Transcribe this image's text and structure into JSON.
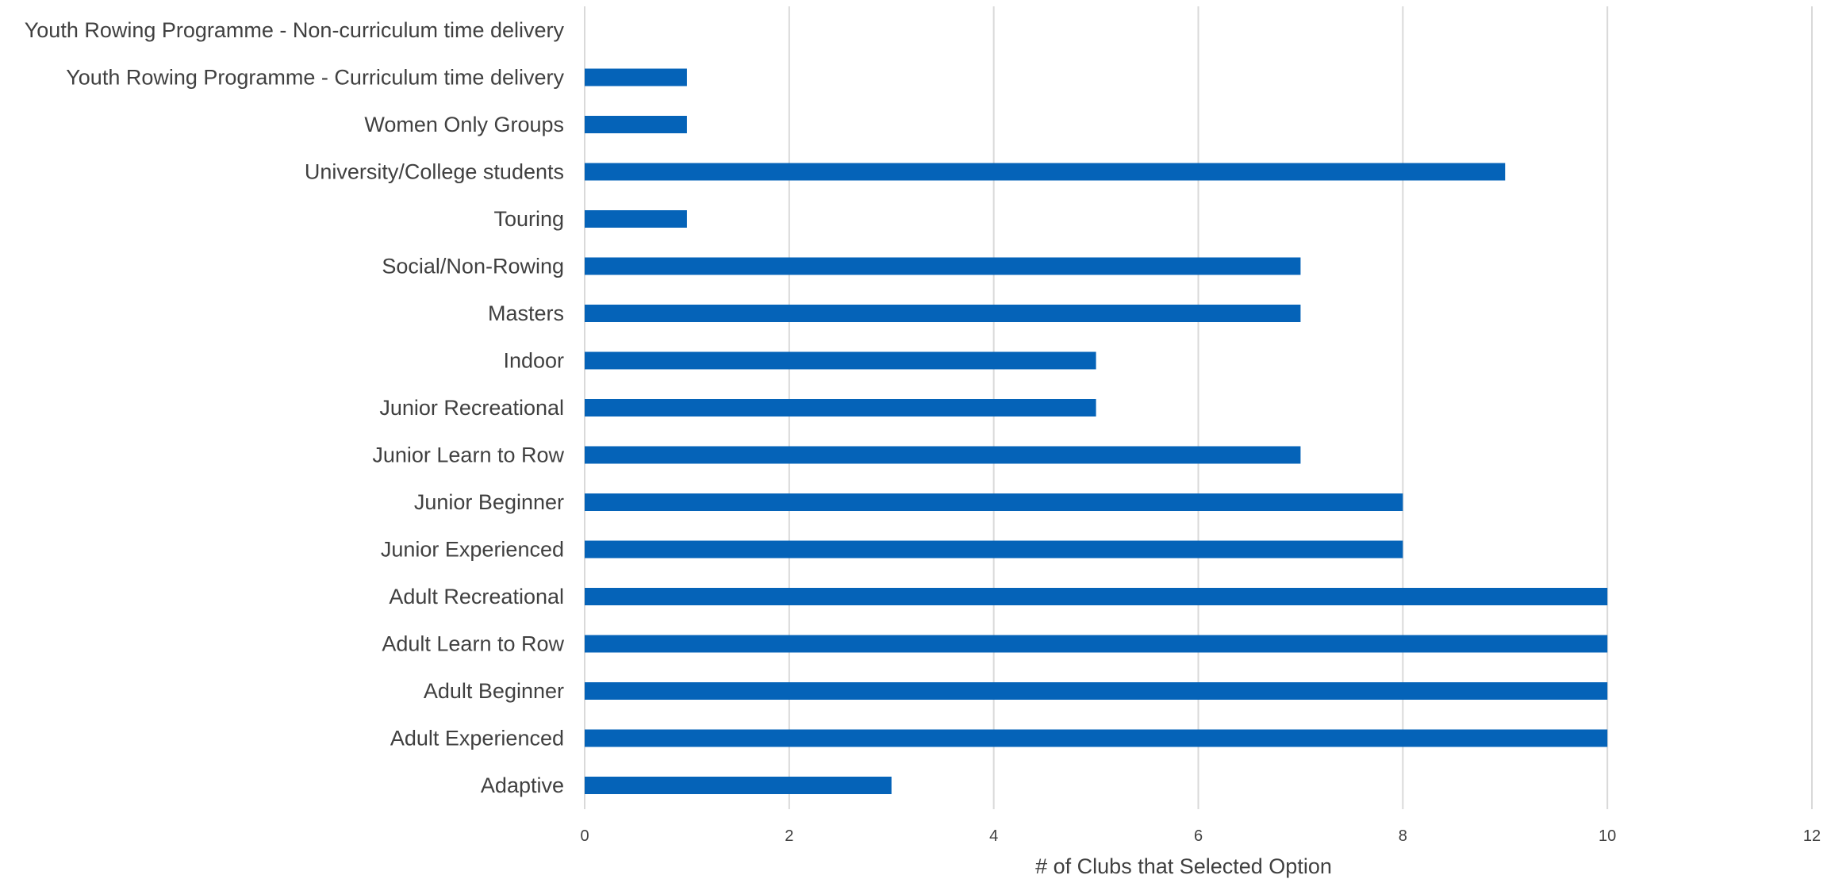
{
  "chart_data": {
    "type": "bar",
    "orientation": "horizontal",
    "categories": [
      "Youth Rowing Programme - Non-curriculum time delivery",
      "Youth Rowing Programme - Curriculum time delivery",
      "Women Only Groups",
      "University/College students",
      "Touring",
      "Social/Non-Rowing",
      "Masters",
      "Indoor",
      "Junior Recreational",
      "Junior Learn to Row",
      "Junior Beginner",
      "Junior Experienced",
      "Adult Recreational",
      "Adult Learn to Row",
      "Adult Beginner",
      "Adult Experienced",
      "Adaptive"
    ],
    "values": [
      0,
      1,
      1,
      9,
      1,
      7,
      7,
      5,
      5,
      7,
      8,
      8,
      10,
      10,
      10,
      10,
      3
    ],
    "xlabel": "# of Clubs that Selected Option",
    "xlim": [
      0,
      12
    ],
    "xticks": [
      "0",
      "2",
      "4",
      "6",
      "8",
      "10",
      "12"
    ],
    "grid": "vertical",
    "bar_color": "#0563b8",
    "grid_color": "#d9d9d9"
  }
}
